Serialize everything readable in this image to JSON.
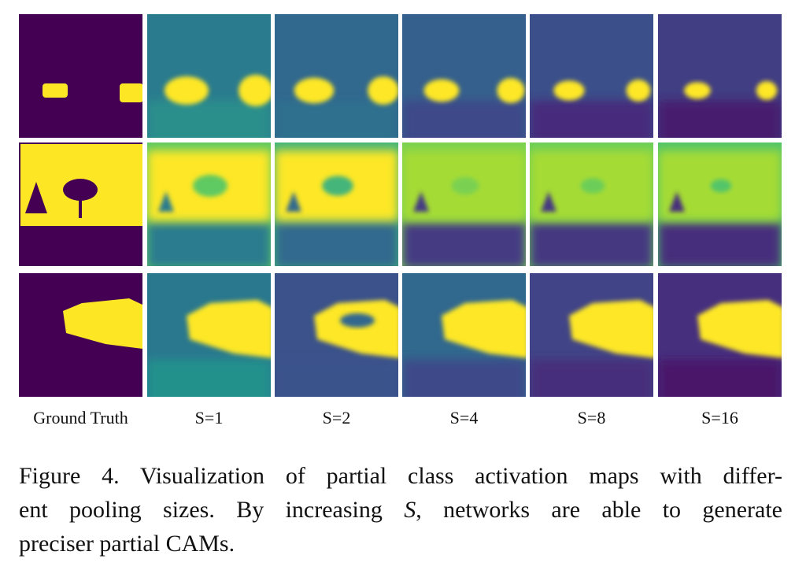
{
  "figure": {
    "column_labels": [
      "Ground Truth",
      "S=1",
      "S=2",
      "S=4",
      "S=8",
      "S=16"
    ],
    "caption": {
      "line1": "Figure 4. Visualization of partial class activation maps with differ-",
      "line2": [
        "ent pooling sizes. By increasing ",
        "S",
        ", networks are able to generate"
      ],
      "line3": "preciser partial CAMs."
    }
  }
}
